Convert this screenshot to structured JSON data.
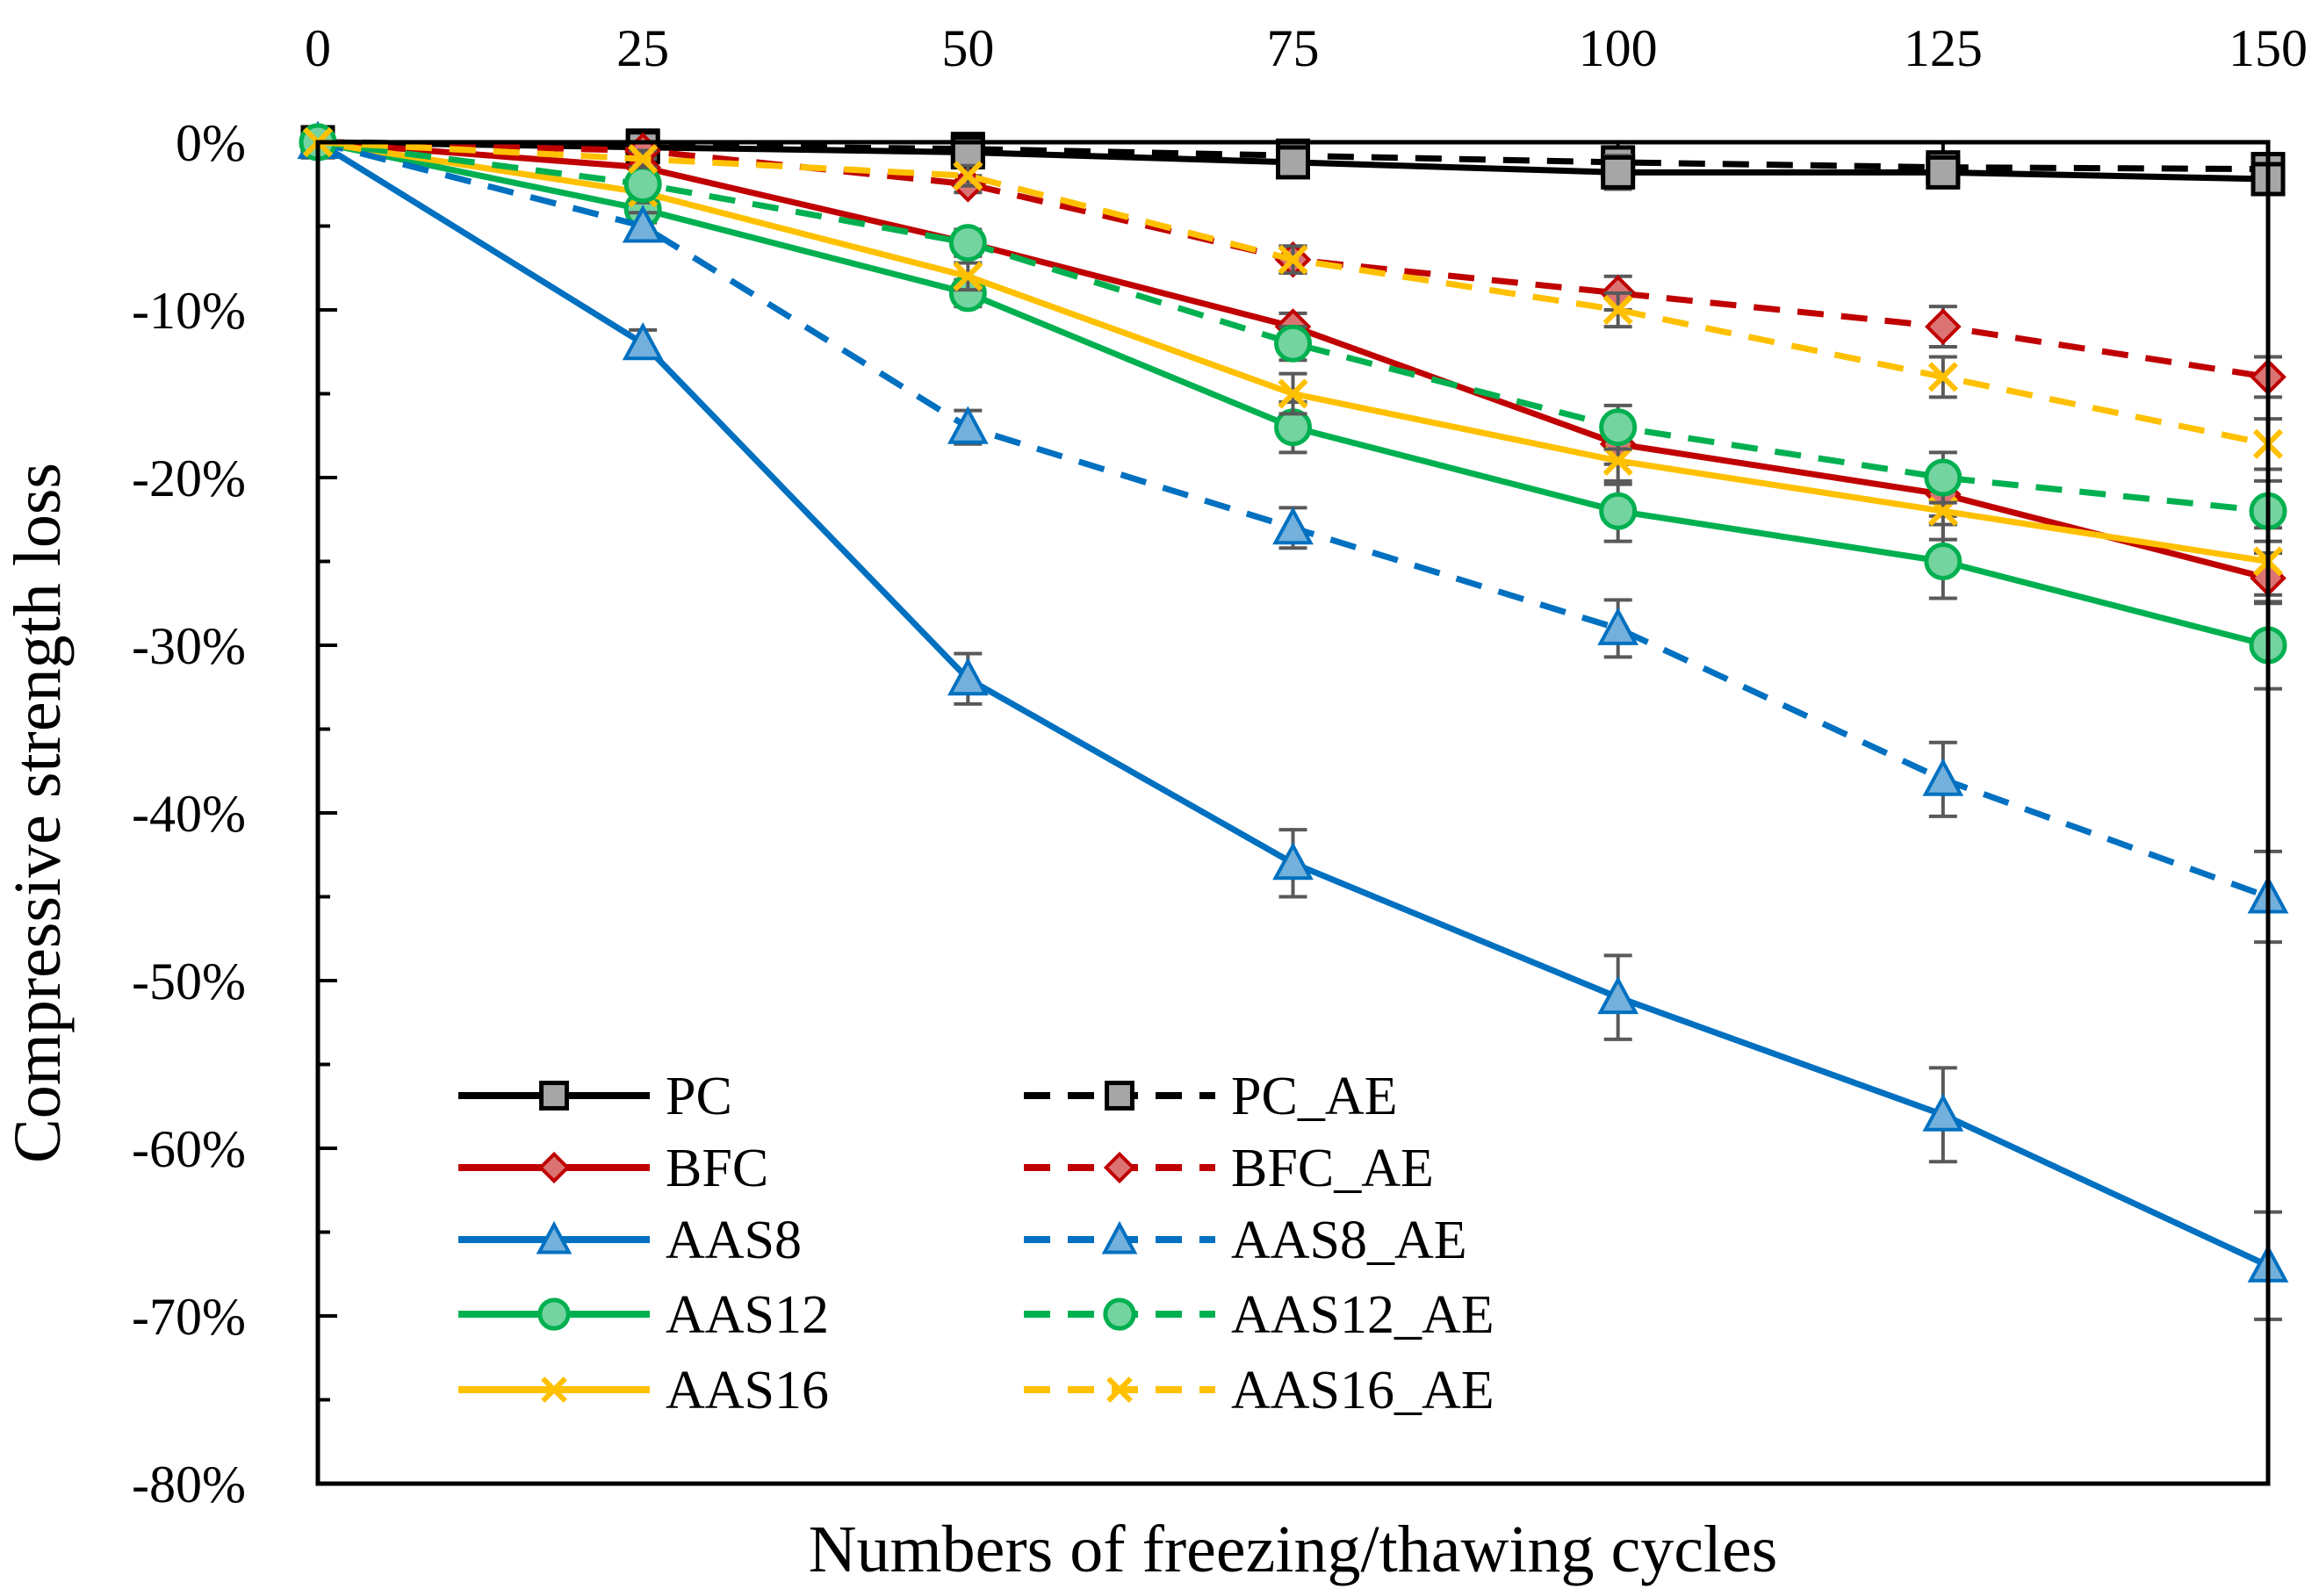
{
  "chart_data": {
    "type": "line",
    "title": "",
    "xlabel": "Numbers of freezing/thawing cycles",
    "ylabel": "Compressive strength loss",
    "x": [
      0,
      25,
      50,
      75,
      100,
      125,
      150
    ],
    "x_tick_labels": [
      "0",
      "25",
      "50",
      "75",
      "100",
      "125",
      "150"
    ],
    "xlim": [
      0,
      150
    ],
    "ylim": [
      -80,
      0
    ],
    "y_ticks": [
      0,
      -10,
      -20,
      -30,
      -40,
      -50,
      -60,
      -70,
      -80
    ],
    "y_tick_labels": [
      "0%",
      "-10%",
      "-20%",
      "-30%",
      "-40%",
      "-50%",
      "-60%",
      "-70%",
      "-80%"
    ],
    "x_axis_position": "top",
    "grid": false,
    "legend_position": "bottom-left",
    "series": [
      {
        "name": "PC",
        "color": "#000000",
        "dash": "solid",
        "marker": "square",
        "values": [
          0,
          -0.3,
          -0.6,
          -1.2,
          -1.8,
          -1.8,
          -2.2
        ],
        "errors": [
          0,
          0.6,
          0.6,
          0.8,
          1.0,
          0.8,
          0.8
        ]
      },
      {
        "name": "PC_AE",
        "color": "#000000",
        "dash": "dashed",
        "marker": "square",
        "values": [
          0,
          -0.2,
          -0.4,
          -0.8,
          -1.2,
          -1.5,
          -1.6
        ],
        "errors": [
          0,
          0.5,
          0.5,
          0.6,
          0.8,
          0.8,
          0.8
        ]
      },
      {
        "name": "BFC",
        "color": "#C00000",
        "dash": "solid",
        "marker": "diamond",
        "values": [
          0,
          -1.5,
          -6,
          -11,
          -18,
          -21,
          -26
        ],
        "errors": [
          0,
          0.5,
          0.6,
          0.8,
          1.2,
          1.3,
          1.5
        ]
      },
      {
        "name": "BFC_AE",
        "color": "#C00000",
        "dash": "dashed",
        "marker": "diamond",
        "values": [
          0,
          -0.5,
          -2.5,
          -7,
          -9,
          -11,
          -14
        ],
        "errors": [
          0,
          0.4,
          0.5,
          0.8,
          1.0,
          1.2,
          1.2
        ]
      },
      {
        "name": "AAS8",
        "color": "#0070C0",
        "dash": "solid",
        "marker": "triangle",
        "values": [
          0,
          -12,
          -32,
          -43,
          -51,
          -58,
          -67
        ],
        "errors": [
          0,
          0.8,
          1.5,
          2.0,
          2.5,
          2.8,
          3.2
        ]
      },
      {
        "name": "AAS8_AE",
        "color": "#0070C0",
        "dash": "dashed",
        "marker": "triangle",
        "values": [
          0,
          -5,
          -17,
          -23,
          -29,
          -38,
          -45
        ],
        "errors": [
          0,
          0.8,
          1.0,
          1.2,
          1.7,
          2.2,
          2.7
        ]
      },
      {
        "name": "AAS12",
        "color": "#00B050",
        "dash": "solid",
        "marker": "circle",
        "values": [
          0,
          -4,
          -9,
          -17,
          -22,
          -25,
          -30
        ],
        "errors": [
          0,
          0.8,
          0.8,
          1.5,
          1.8,
          2.2,
          2.6
        ]
      },
      {
        "name": "AAS12_AE",
        "color": "#00B050",
        "dash": "dashed",
        "marker": "circle",
        "values": [
          0,
          -2.5,
          -6,
          -12,
          -17,
          -20,
          -22
        ],
        "errors": [
          0,
          0.6,
          0.8,
          1.0,
          1.3,
          1.5,
          1.8
        ]
      },
      {
        "name": "AAS16",
        "color": "#FFC000",
        "dash": "solid",
        "marker": "x",
        "values": [
          0,
          -3,
          -8,
          -15,
          -19,
          -22,
          -25
        ],
        "errors": [
          0,
          0.6,
          0.8,
          1.2,
          1.4,
          1.7,
          2.0
        ]
      },
      {
        "name": "AAS16_AE",
        "color": "#FFC000",
        "dash": "dashed",
        "marker": "x",
        "values": [
          0,
          -1,
          -2,
          -7,
          -10,
          -14,
          -18
        ],
        "errors": [
          0,
          0.5,
          0.6,
          0.8,
          1.0,
          1.2,
          1.5
        ]
      }
    ],
    "legend": {
      "left_column": [
        "PC",
        "BFC",
        "AAS8",
        "AAS12",
        "AAS16"
      ],
      "right_column": [
        "PC_AE",
        "BFC_AE",
        "AAS8_AE",
        "AAS12_AE",
        "AAS16_AE"
      ]
    }
  }
}
